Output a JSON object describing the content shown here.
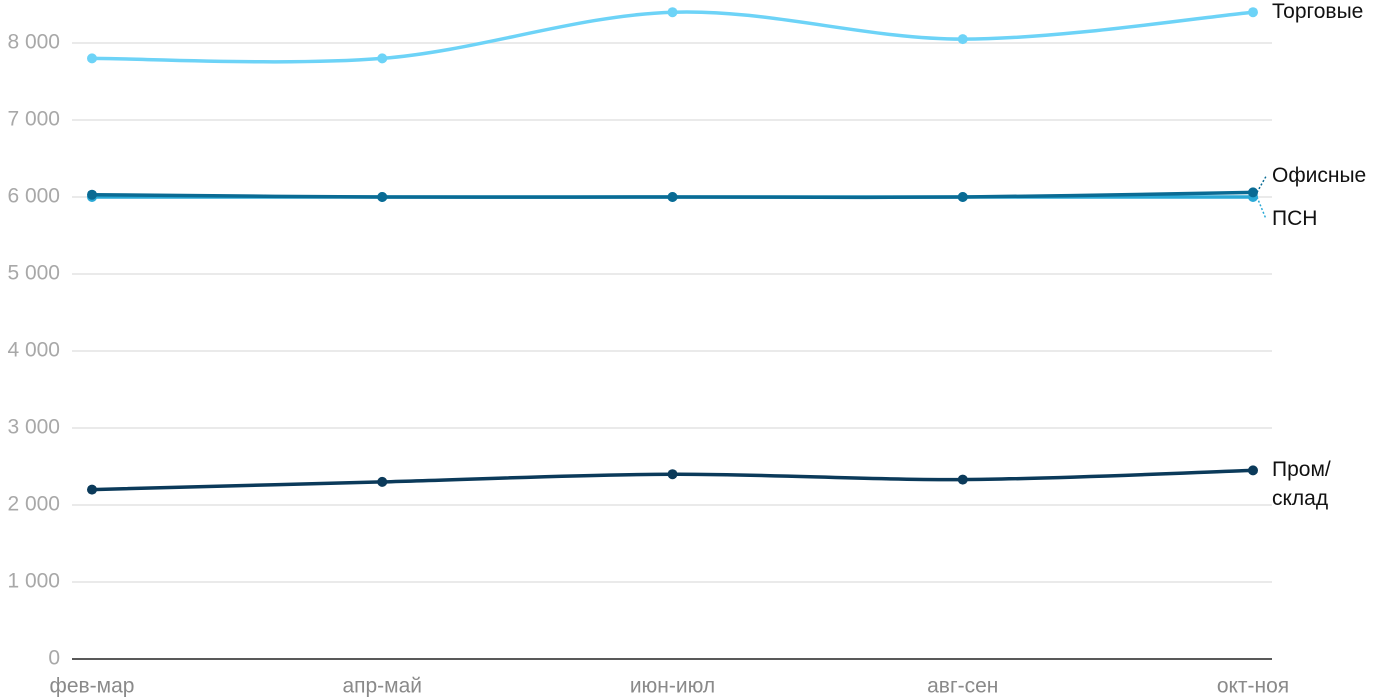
{
  "chart_data": {
    "type": "line",
    "categories": [
      "фев-мар",
      "апр-май",
      "июн-июл",
      "авг-сен",
      "окт-ноя"
    ],
    "series": [
      {
        "name": "Торговые",
        "color": "#6dd3f7",
        "values": [
          7800,
          7800,
          8400,
          8050,
          8400
        ]
      },
      {
        "name": "ПСН",
        "color": "#2ba9d6",
        "values": [
          6000,
          6000,
          6000,
          6000,
          6000
        ]
      },
      {
        "name": "Офисные",
        "color": "#0a6b94",
        "values": [
          6030,
          6000,
          6000,
          6000,
          6060
        ]
      },
      {
        "name": "Пром/ склад",
        "color": "#0b3a5a",
        "values": [
          2200,
          2300,
          2400,
          2330,
          2450
        ]
      }
    ],
    "ylim": [
      0,
      8000
    ],
    "yticks": [
      0,
      {
        "value": 1000,
        "label": "1 000"
      },
      {
        "value": 2000,
        "label": "2 000"
      },
      {
        "value": 3000,
        "label": "3 000"
      },
      {
        "value": 4000,
        "label": "4 000"
      },
      {
        "value": 5000,
        "label": "5 000"
      },
      {
        "value": 6000,
        "label": "6 000"
      },
      {
        "value": 7000,
        "label": "7 000"
      },
      {
        "value": 8000,
        "label": "8 000"
      }
    ],
    "grid": true
  }
}
